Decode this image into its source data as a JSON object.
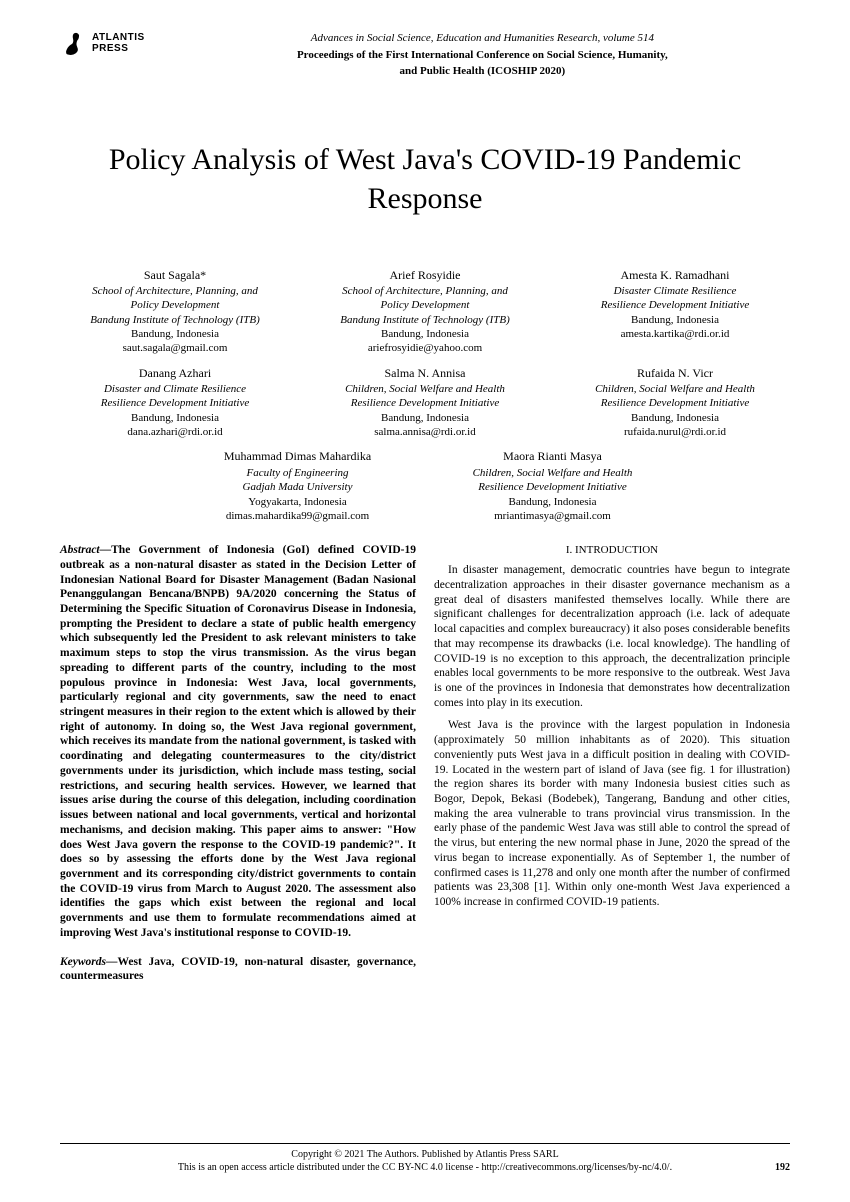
{
  "publisher": {
    "name_line1": "ATLANTIS",
    "name_line2": "PRESS"
  },
  "header": {
    "series": "Advances in Social Science, Education and Humanities Research, volume 514",
    "proceedings_line1": "Proceedings of the First International Conference on Social Science, Humanity,",
    "proceedings_line2": "and Public Health (ICOSHIP 2020)"
  },
  "title": "Policy Analysis of West Java's COVID-19 Pandemic Response",
  "authors_row1": [
    {
      "name": "Saut Sagala*",
      "affil1": "School of Architecture, Planning, and",
      "affil2": "Policy Development",
      "affil3": "Bandung Institute of Technology (ITB)",
      "loc": "Bandung, Indonesia",
      "email": "saut.sagala@gmail.com"
    },
    {
      "name": "Arief Rosyidie",
      "affil1": "School of Architecture, Planning, and",
      "affil2": "Policy Development",
      "affil3": "Bandung Institute of Technology (ITB)",
      "loc": "Bandung, Indonesia",
      "email": "ariefrosyidie@yahoo.com"
    },
    {
      "name": "Amesta K. Ramadhani",
      "affil1": "Disaster Climate Resilience",
      "affil2": "Resilience Development Initiative",
      "affil3": "",
      "loc": "Bandung, Indonesia",
      "email": "amesta.kartika@rdi.or.id"
    }
  ],
  "authors_row2": [
    {
      "name": "Danang Azhari",
      "affil1": "Disaster and Climate Resilience",
      "affil2": "Resilience Development Initiative",
      "affil3": "",
      "loc": "Bandung, Indonesia",
      "email": "dana.azhari@rdi.or.id"
    },
    {
      "name": "Salma N. Annisa",
      "affil1": "Children, Social Welfare and Health",
      "affil2": "Resilience Development Initiative",
      "affil3": "",
      "loc": "Bandung, Indonesia",
      "email": "salma.annisa@rdi.or.id"
    },
    {
      "name": "Rufaida N. Vicr",
      "affil1": "Children, Social Welfare and Health",
      "affil2": "Resilience Development Initiative",
      "affil3": "",
      "loc": "Bandung, Indonesia",
      "email": "rufaida.nurul@rdi.or.id"
    }
  ],
  "authors_row3": [
    {
      "name": "Muhammad Dimas Mahardika",
      "affil1": "Faculty of Engineering",
      "affil2": "Gadjah Mada University",
      "affil3": "",
      "loc": "Yogyakarta, Indonesia",
      "email": "dimas.mahardika99@gmail.com"
    },
    {
      "name": "Maora Rianti Masya",
      "affil1": "Children, Social Welfare and Health",
      "affil2": "Resilience Development Initiative",
      "affil3": "",
      "loc": "Bandung, Indonesia",
      "email": "mriantimasya@gmail.com"
    }
  ],
  "abstract": {
    "label": "Abstract—",
    "text": "The Government of Indonesia (GoI) defined COVID-19 outbreak as a non-natural disaster as stated in the Decision Letter of Indonesian National Board for Disaster Management (Badan Nasional Penanggulangan Bencana/BNPB) 9A/2020 concerning the Status of Determining the Specific Situation of Coronavirus Disease in Indonesia, prompting the President to declare a state of public health emergency which subsequently led the President to ask relevant ministers to take maximum steps to stop the virus transmission. As the virus began spreading to different parts of the country, including to the most populous province in Indonesia: West Java, local governments, particularly regional and city governments, saw the need to enact stringent measures in their region to the extent which is allowed by their right of autonomy. In doing so, the West Java regional government, which receives its mandate from the national government, is tasked with coordinating and delegating countermeasures to the city/district governments under its jurisdiction, which include mass testing, social restrictions, and securing health services. However, we learned that issues arise during the course of this delegation, including coordination issues between national and local governments, vertical and horizontal mechanisms, and decision making. This paper aims to answer: \"How does West Java govern the response to the COVID-19 pandemic?\". It does so by assessing the efforts done by the West Java regional government and its corresponding city/district governments to contain the COVID-19 virus from March to August 2020. The assessment also identifies the gaps which exist between the regional and local governments and use them to formulate recommendations aimed at improving West Java's institutional response to COVID-19."
  },
  "keywords": {
    "label": "Keywords—",
    "text": "West Java, COVID-19, non-natural disaster, governance, countermeasures"
  },
  "section1": {
    "heading": "I.   INTRODUCTION",
    "p1": "In disaster management, democratic countries have begun to integrate decentralization approaches in their disaster governance mechanism as a great deal of disasters manifested themselves locally. While there are significant challenges for decentralization approach (i.e. lack of adequate local capacities and complex bureaucracy) it also poses considerable benefits that may recompense its drawbacks (i.e. local knowledge). The handling of COVID-19 is no exception to this approach, the decentralization principle enables local governments to be more responsive to the outbreak. West Java is one of the provinces in Indonesia that demonstrates how decentralization comes into play in its execution.",
    "p2": "West Java is the province with the largest population in Indonesia (approximately 50 million inhabitants as of 2020). This situation conveniently puts West java in a difficult position in dealing with COVID-19. Located in the western part of island of Java (see fig. 1 for illustration) the region shares its border with many Indonesia busiest cities such as Bogor, Depok, Bekasi (Bodebek), Tangerang, Bandung and other cities, making the area vulnerable to trans provincial virus transmission. In the early phase of the pandemic West Java was still able to control the spread of the virus, but entering the new normal phase in June, 2020 the spread of the virus began to increase exponentially. As of September 1, the number of confirmed cases is 11,278 and only one month after the number of confirmed patients was 23,308 [1]. Within only one-month West Java experienced a 100% increase in confirmed COVID-19 patients."
  },
  "footer": {
    "line1": "Copyright © 2021 The Authors. Published by Atlantis Press SARL",
    "line2": "This is an open access article distributed under the  CC BY-NC 4.0 license - http://creativecommons.org/licenses/by-nc/4.0/.",
    "page": "192"
  }
}
